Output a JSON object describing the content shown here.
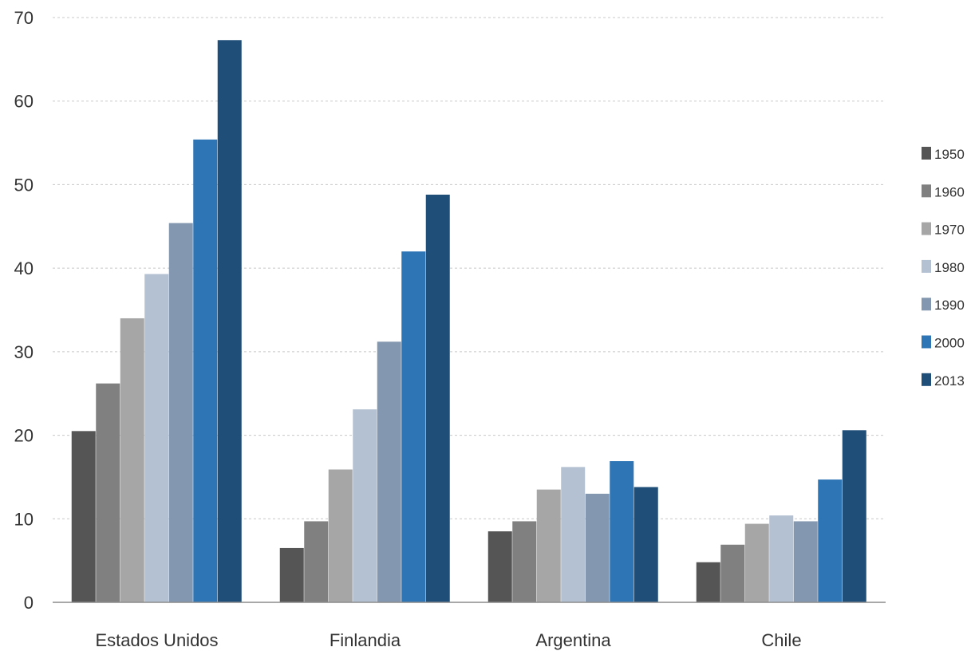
{
  "chart_data": {
    "type": "bar",
    "title": "",
    "xlabel": "",
    "ylabel": "",
    "ylim": [
      0,
      70
    ],
    "yticks": [
      0,
      10,
      20,
      30,
      40,
      50,
      60,
      70
    ],
    "grid": "horizontal dashed",
    "legend_position": "right",
    "categories": [
      "Estados Unidos",
      "Finlandia",
      "Argentina",
      "Chile"
    ],
    "series": [
      {
        "name": "1950",
        "color": "#555555",
        "values": [
          20.5,
          6.5,
          8.5,
          4.8
        ]
      },
      {
        "name": "1960",
        "color": "#808080",
        "values": [
          26.2,
          9.7,
          9.7,
          6.9
        ]
      },
      {
        "name": "1970",
        "color": "#a6a6a6",
        "values": [
          34.0,
          15.9,
          13.5,
          9.4
        ]
      },
      {
        "name": "1980",
        "color": "#b4c1d2",
        "values": [
          39.3,
          23.1,
          16.2,
          10.4
        ]
      },
      {
        "name": "1990",
        "color": "#8497b0",
        "values": [
          45.4,
          31.2,
          13.0,
          9.7
        ]
      },
      {
        "name": "2000",
        "color": "#2e75b6",
        "values": [
          55.4,
          42.0,
          16.9,
          14.7
        ]
      },
      {
        "name": "2013",
        "color": "#1f4e79",
        "values": [
          67.3,
          48.8,
          13.8,
          20.6
        ]
      }
    ]
  }
}
